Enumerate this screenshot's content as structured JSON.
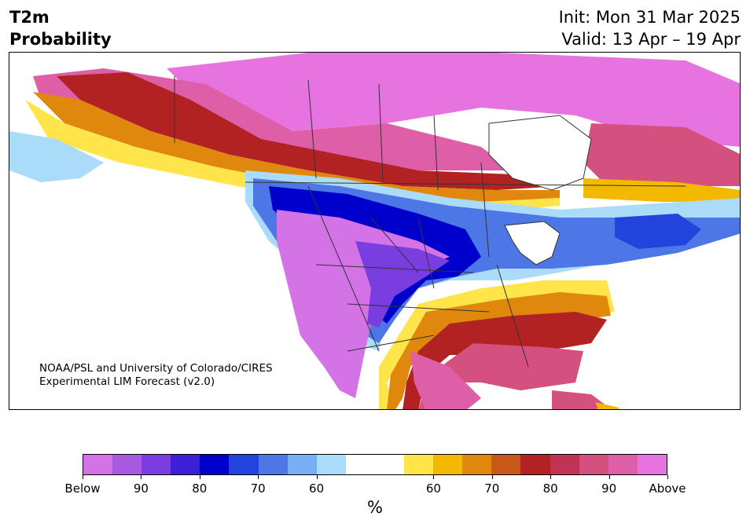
{
  "header": {
    "title_line1": "T2m",
    "title_line2": "Probability",
    "init": "Init: Mon 31 Mar 2025",
    "valid": "Valid: 13 Apr – 19 Apr"
  },
  "map": {
    "credit_line1": "NOAA/PSL and University of Colorado/CIRES",
    "credit_line2": "Experimental LIM Forecast (v2.0)",
    "category_colors": {
      "below_strong": "#d373e6",
      "below_blue": "#0a0acd",
      "neutral": "#ffffff",
      "above_red": "#b22222",
      "above_strong": "#e673e0"
    }
  },
  "colorbar": {
    "unit": "%",
    "segments": [
      "#d373e6",
      "#a75ae0",
      "#7a3ee0",
      "#3d1fd6",
      "#0000cd",
      "#2244dd",
      "#4d77e6",
      "#77b0f2",
      "#aadcfa",
      "#ffffff",
      "#ffffff",
      "#ffe44a",
      "#f2b900",
      "#e0870e",
      "#c8571a",
      "#b22222",
      "#c13355",
      "#d4507e",
      "#de5fa8",
      "#e673e0"
    ],
    "tick_labels": [
      "Below",
      "90",
      "80",
      "70",
      "60",
      "60",
      "70",
      "80",
      "90",
      "Above"
    ]
  }
}
